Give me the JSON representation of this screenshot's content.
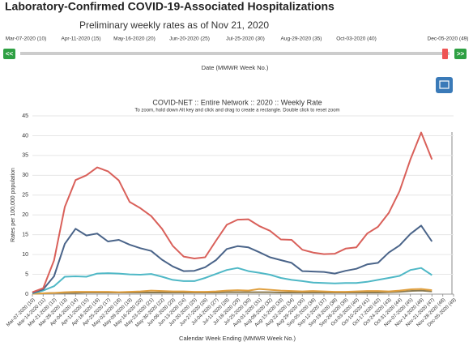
{
  "header": {
    "title": "Laboratory-Confirmed COVID-19-Associated Hospitalizations",
    "subtitle": "Preliminary weekly rates as of Nov 21, 2020"
  },
  "slider": {
    "labels": [
      "Mar-07-2020 (10)",
      "Apr-11-2020 (15)",
      "May-16-2020 (20)",
      "Jun-20-2020 (25)",
      "Jul-25-2020 (30)",
      "Aug-29-2020 (35)",
      "Oct-03-2020 (40)",
      "Dec-05-2020 (49)"
    ],
    "axis_label": "Date (MMWR Week No.)",
    "prev_button": "<<",
    "next_button": ">>"
  },
  "chart_data": {
    "type": "line",
    "title": "COVID-NET :: Entire Network :: 2020 :: Weekly Rate",
    "subtitle": "To zoom, hold down Alt key and click and drag to create a rectangle. Double click to reset zoom",
    "x_label": "Calendar Week Ending (MMWR Week No.)",
    "y_label": "Rates per 100,000 population",
    "categories": [
      "Mar-07-2020 (10)",
      "Mar-14-2020 (11)",
      "Mar-21-2020 (12)",
      "Mar-28-2020 (13)",
      "Apr-04-2020 (14)",
      "Apr-11-2020 (15)",
      "Apr-18-2020 (16)",
      "Apr-25-2020 (17)",
      "May-02-2020 (18)",
      "May-09-2020 (19)",
      "May-16-2020 (20)",
      "May-23-2020 (21)",
      "May-30-2020 (22)",
      "Jun-06-2020 (23)",
      "Jun-13-2020 (24)",
      "Jun-20-2020 (25)",
      "Jun-27-2020 (26)",
      "Jul-04-2020 (27)",
      "Jul-11-2020 (28)",
      "Jul-18-2020 (29)",
      "Jul-25-2020 (30)",
      "Aug-01-2020 (31)",
      "Aug-08-2020 (32)",
      "Aug-15-2020 (33)",
      "Aug-22-2020 (34)",
      "Aug-29-2020 (35)",
      "Sep-05-2020 (36)",
      "Sep-12-2020 (37)",
      "Sep-19-2020 (38)",
      "Sep-26-2020 (39)",
      "Oct-03-2020 (40)",
      "Oct-10-2020 (41)",
      "Oct-17-2020 (42)",
      "Oct-24-2020 (43)",
      "Oct-31-2020 (44)",
      "Nov-07-2020 (45)",
      "Nov-14-2020 (46)",
      "Nov-21-2020 (47)",
      "Nov-28-2020 (48)",
      "Dec-05-2020 (49)"
    ],
    "series": [
      {
        "color": "#d9605a",
        "values": [
          0.5,
          1.5,
          8.5,
          22,
          28.8,
          30,
          32,
          31,
          28.7,
          23.3,
          21.7,
          19.7,
          16.5,
          12.2,
          9.5,
          9,
          9.3,
          13.5,
          17.5,
          18.8,
          18.9,
          17.2,
          16,
          13.8,
          13.7,
          11.2,
          10.5,
          10.1,
          10.2,
          11.5,
          11.8,
          15.3,
          17,
          20.5,
          26,
          34,
          40.8,
          34,
          null,
          null
        ]
      },
      {
        "color": "#4a6489",
        "values": [
          0.3,
          1.2,
          4.5,
          12.7,
          16.5,
          14.8,
          15.3,
          13.3,
          13.7,
          12.5,
          11.6,
          10.9,
          8.7,
          7,
          5.8,
          5.9,
          6.8,
          8.6,
          11.4,
          12.1,
          11.8,
          10.6,
          9.3,
          8.6,
          7.9,
          5.8,
          5.7,
          5.6,
          5.2,
          5.9,
          6.4,
          7.5,
          7.9,
          10.5,
          12.3,
          15.2,
          17.3,
          13.3,
          null,
          null
        ]
      },
      {
        "color": "#4fb8c6",
        "values": [
          0.2,
          0.9,
          2,
          4.4,
          4.5,
          4.4,
          5.2,
          5.3,
          5.2,
          5,
          4.9,
          5.1,
          4.4,
          3.6,
          3.3,
          3.3,
          4.1,
          5.1,
          6.1,
          6.6,
          5.8,
          5.4,
          4.9,
          4.1,
          3.6,
          3.3,
          2.9,
          2.8,
          2.7,
          2.8,
          2.8,
          3.1,
          3.6,
          4.1,
          4.6,
          6.1,
          6.6,
          4.8,
          null,
          null
        ]
      },
      {
        "color": "#e0a040",
        "values": [
          0.1,
          0.2,
          0.3,
          0.5,
          0.6,
          0.6,
          0.6,
          0.6,
          0.5,
          0.6,
          0.7,
          0.9,
          0.8,
          0.7,
          0.7,
          0.6,
          0.6,
          0.7,
          0.9,
          1,
          0.9,
          1.3,
          1.1,
          0.9,
          0.8,
          0.7,
          0.8,
          0.7,
          0.6,
          0.6,
          0.7,
          0.8,
          0.8,
          0.7,
          0.9,
          1.2,
          1.3,
          1,
          null,
          null
        ]
      },
      {
        "color": "#8a7a50",
        "values": [
          0.1,
          0.2,
          0.3,
          0.3,
          0.3,
          0.4,
          0.4,
          0.4,
          0.4,
          0.4,
          0.4,
          0.4,
          0.4,
          0.4,
          0.4,
          0.4,
          0.4,
          0.4,
          0.5,
          0.5,
          0.5,
          0.5,
          0.5,
          0.4,
          0.4,
          0.4,
          0.4,
          0.4,
          0.4,
          0.4,
          0.4,
          0.4,
          0.4,
          0.5,
          0.6,
          0.8,
          0.9,
          0.7,
          null,
          null
        ]
      }
    ],
    "ylim": [
      0,
      45
    ],
    "yticks": [
      0,
      5,
      10,
      15,
      20,
      25,
      30,
      35,
      40,
      45
    ],
    "grid": true
  }
}
